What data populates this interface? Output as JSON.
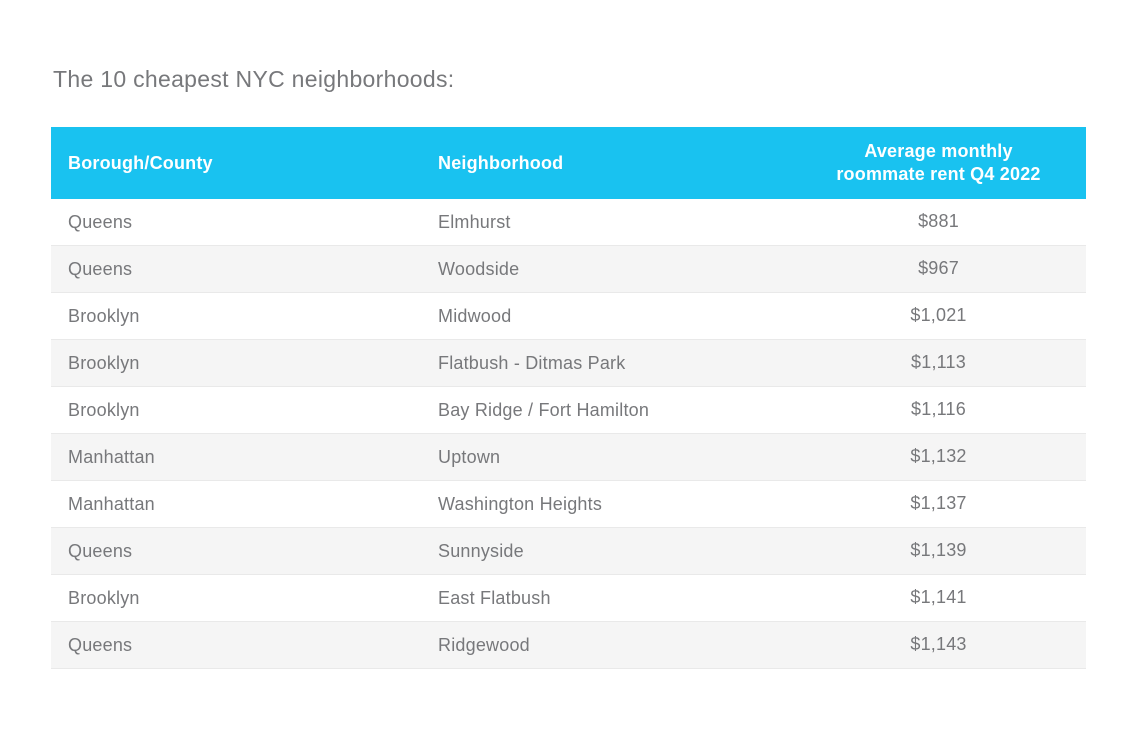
{
  "title": "The 10 cheapest NYC neighborhoods:",
  "colors": {
    "header_background": "#19c2f0",
    "header_text": "#ffffff",
    "row_background": "#ffffff",
    "row_alt_background": "#f5f5f5",
    "row_border": "#e9e9e9",
    "text": "#77787b",
    "page_background": "#ffffff"
  },
  "table": {
    "columns": {
      "borough": "Borough/County",
      "neighborhood": "Neighborhood",
      "rent_line1": "Average monthly",
      "rent_line2": "roommate rent Q4 2022"
    },
    "rows": [
      {
        "borough": "Queens",
        "neighborhood": "Elmhurst",
        "rent": "$881"
      },
      {
        "borough": "Queens",
        "neighborhood": "Woodside",
        "rent": "$967"
      },
      {
        "borough": "Brooklyn",
        "neighborhood": "Midwood",
        "rent": "$1,021"
      },
      {
        "borough": "Brooklyn",
        "neighborhood": "Flatbush - Ditmas Park",
        "rent": "$1,113"
      },
      {
        "borough": "Brooklyn",
        "neighborhood": "Bay Ridge / Fort Hamilton",
        "rent": "$1,116"
      },
      {
        "borough": "Manhattan",
        "neighborhood": "Uptown",
        "rent": "$1,132"
      },
      {
        "borough": "Manhattan",
        "neighborhood": "Washington Heights",
        "rent": "$1,137"
      },
      {
        "borough": "Queens",
        "neighborhood": "Sunnyside",
        "rent": "$1,139"
      },
      {
        "borough": "Brooklyn",
        "neighborhood": "East Flatbush",
        "rent": "$1,141"
      },
      {
        "borough": "Queens",
        "neighborhood": "Ridgewood",
        "rent": "$1,143"
      }
    ]
  },
  "chart_data": {
    "type": "table",
    "title": "The 10 cheapest NYC neighborhoods:",
    "columns": [
      "Borough/County",
      "Neighborhood",
      "Average monthly roommate rent Q4 2022"
    ],
    "rows": [
      [
        "Queens",
        "Elmhurst",
        881
      ],
      [
        "Queens",
        "Woodside",
        967
      ],
      [
        "Brooklyn",
        "Midwood",
        1021
      ],
      [
        "Brooklyn",
        "Flatbush - Ditmas Park",
        1113
      ],
      [
        "Brooklyn",
        "Bay Ridge / Fort Hamilton",
        1116
      ],
      [
        "Manhattan",
        "Uptown",
        1132
      ],
      [
        "Manhattan",
        "Washington Heights",
        1137
      ],
      [
        "Queens",
        "Sunnyside",
        1139
      ],
      [
        "Brooklyn",
        "East Flatbush",
        1141
      ],
      [
        "Queens",
        "Ridgewood",
        1143
      ]
    ],
    "units": "USD per month",
    "legend_position": "none",
    "grid": false
  }
}
